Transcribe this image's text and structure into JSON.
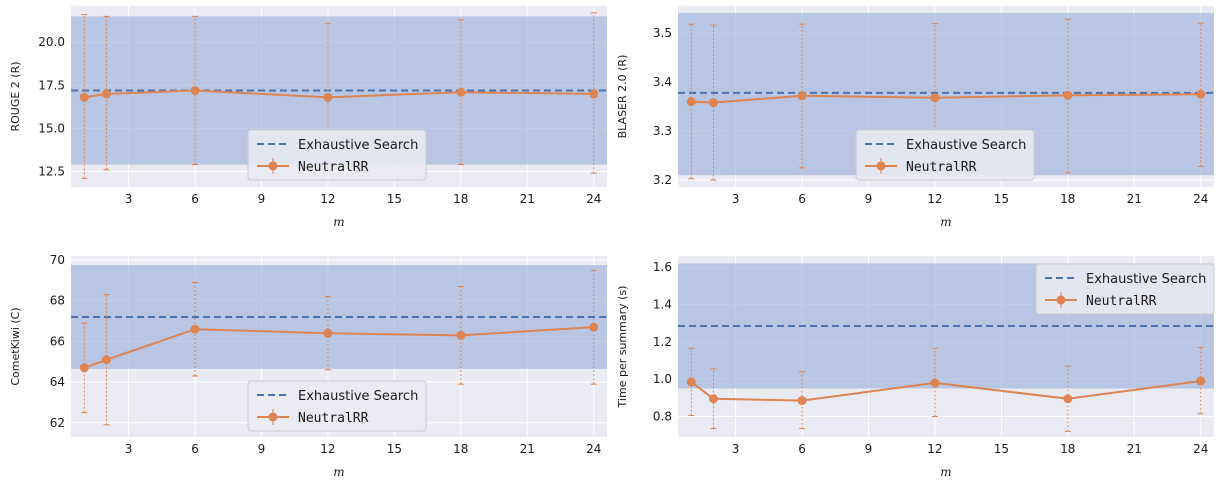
{
  "colors": {
    "panel_bg": "#eaeaf2",
    "grid": "#ffffff",
    "band": "#a6b8dc",
    "baseline": "#4c72b0",
    "series": "#dd8452"
  },
  "chart_data": [
    {
      "type": "line",
      "xlabel": "m",
      "ylabel": "ROUGE 2 (R)",
      "xticks": [
        3,
        6,
        9,
        12,
        15,
        18,
        21,
        24
      ],
      "xlim": [
        0.4,
        24.6
      ],
      "yticks": [
        12.5,
        15.0,
        17.5,
        20.0
      ],
      "ytick_labels": [
        "12.5",
        "15.0",
        "17.5",
        "20.0"
      ],
      "ylim": [
        11.6,
        22.1
      ],
      "grid": true,
      "baseline": {
        "name": "Exhaustive Search",
        "value": 17.2,
        "band": [
          12.9,
          21.5
        ]
      },
      "series": [
        {
          "name": "NeutralRR",
          "x": [
            1,
            2,
            6,
            12,
            18,
            24
          ],
          "y": [
            16.8,
            17.0,
            17.2,
            16.8,
            17.1,
            17.0
          ],
          "err_low": [
            12.1,
            12.6,
            12.9,
            12.5,
            12.9,
            12.4
          ],
          "err_high": [
            21.6,
            21.5,
            21.5,
            21.1,
            21.3,
            21.7
          ]
        }
      ],
      "legend": {
        "position": "lower-center"
      }
    },
    {
      "type": "line",
      "xlabel": "m",
      "ylabel": "BLASER 2.0 (R)",
      "xticks": [
        3,
        6,
        9,
        12,
        15,
        18,
        21,
        24
      ],
      "xlim": [
        0.4,
        24.6
      ],
      "yticks": [
        3.2,
        3.3,
        3.4,
        3.5
      ],
      "ytick_labels": [
        "3.2",
        "3.3",
        "3.4",
        "3.5"
      ],
      "ylim": [
        3.186,
        3.555
      ],
      "grid": true,
      "baseline": {
        "name": "Exhaustive Search",
        "value": 3.378,
        "band": [
          3.21,
          3.541
        ]
      },
      "series": [
        {
          "name": "NeutralRR",
          "x": [
            1,
            2,
            6,
            12,
            18,
            24
          ],
          "y": [
            3.36,
            3.358,
            3.372,
            3.368,
            3.373,
            3.375
          ],
          "err_low": [
            3.203,
            3.2,
            3.225,
            3.218,
            3.215,
            3.228
          ],
          "err_high": [
            3.518,
            3.516,
            3.518,
            3.519,
            3.528,
            3.52
          ]
        }
      ],
      "legend": {
        "position": "lower-center"
      }
    },
    {
      "type": "line",
      "xlabel": "m",
      "ylabel": "CometKiwi (C)",
      "xticks": [
        3,
        6,
        9,
        12,
        15,
        18,
        21,
        24
      ],
      "xlim": [
        0.4,
        24.6
      ],
      "yticks": [
        62,
        64,
        66,
        68,
        70
      ],
      "ytick_labels": [
        "62",
        "64",
        "66",
        "68",
        "70"
      ],
      "ylim": [
        61.3,
        70.2
      ],
      "grid": true,
      "baseline": {
        "name": "Exhaustive Search",
        "value": 67.2,
        "band": [
          64.65,
          69.75
        ]
      },
      "series": [
        {
          "name": "NeutralRR",
          "x": [
            1,
            2,
            6,
            12,
            18,
            24
          ],
          "y": [
            64.7,
            65.1,
            66.6,
            66.4,
            66.3,
            66.7
          ],
          "err_low": [
            62.5,
            61.9,
            64.3,
            64.6,
            63.9,
            63.9
          ],
          "err_high": [
            66.9,
            68.3,
            68.9,
            68.2,
            68.7,
            69.5
          ]
        }
      ],
      "legend": {
        "position": "lower-center"
      }
    },
    {
      "type": "line",
      "xlabel": "m",
      "ylabel": "Time per summary (s)",
      "xticks": [
        3,
        6,
        9,
        12,
        15,
        18,
        21,
        24
      ],
      "xlim": [
        0.4,
        24.6
      ],
      "yticks": [
        0.8,
        1.0,
        1.2,
        1.4,
        1.6
      ],
      "ytick_labels": [
        "0.8",
        "1.0",
        "1.2",
        "1.4",
        "1.6"
      ],
      "ylim": [
        0.69,
        1.66
      ],
      "grid": true,
      "baseline": {
        "name": "Exhaustive Search",
        "value": 1.285,
        "band": [
          0.95,
          1.62
        ]
      },
      "series": [
        {
          "name": "NeutralRR",
          "x": [
            1,
            2,
            6,
            12,
            18,
            24
          ],
          "y": [
            0.985,
            0.895,
            0.885,
            0.98,
            0.895,
            0.99
          ],
          "err_low": [
            0.805,
            0.735,
            0.735,
            0.8,
            0.72,
            0.815
          ],
          "err_high": [
            1.165,
            1.055,
            1.04,
            1.165,
            1.07,
            1.17
          ]
        }
      ],
      "legend": {
        "position": "upper-right"
      }
    }
  ]
}
